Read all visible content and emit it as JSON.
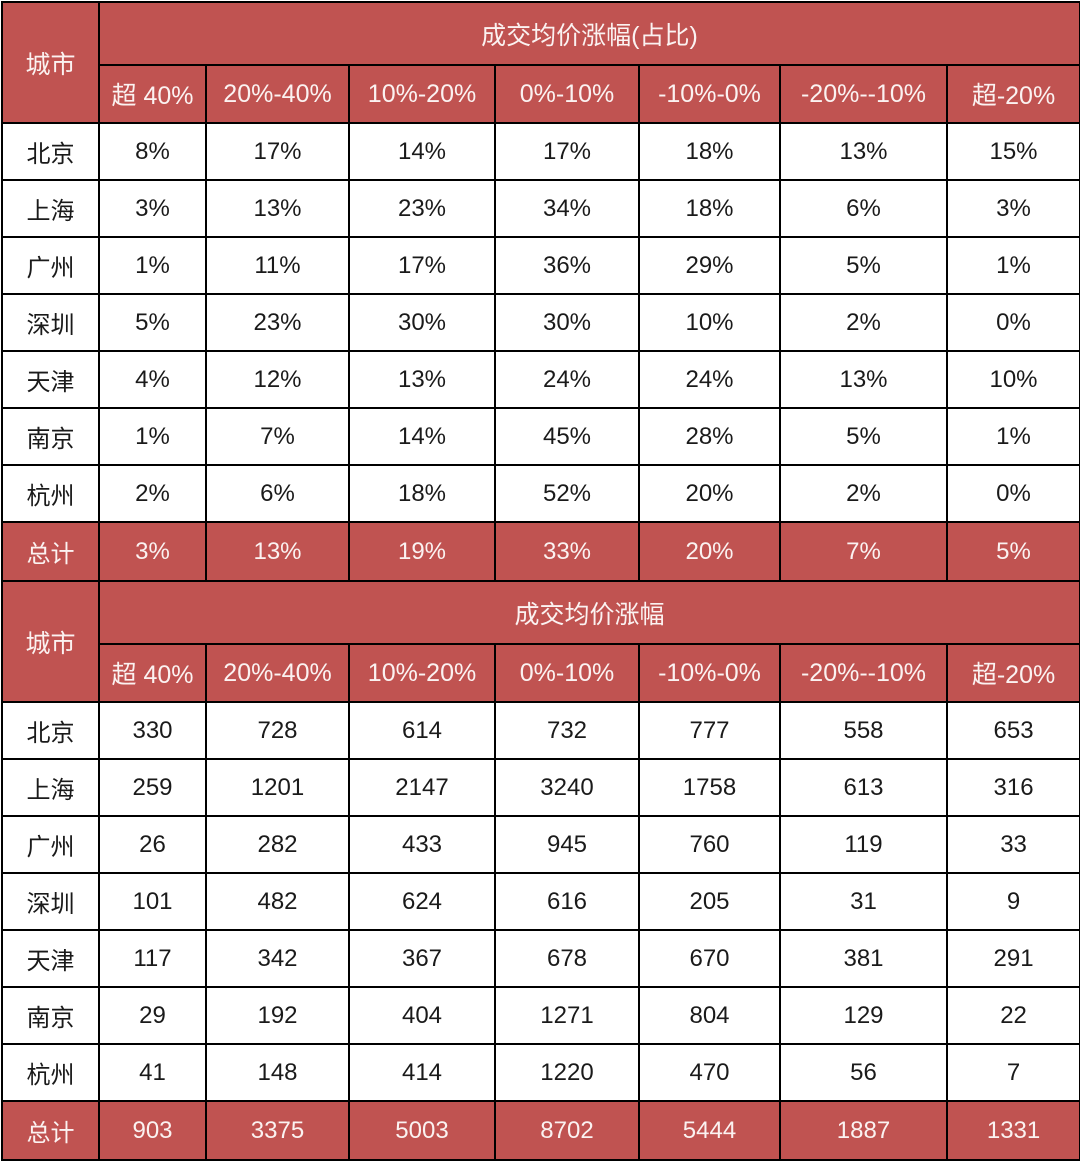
{
  "colors": {
    "accent_red": "#C05351",
    "header_text": "#FBF2F1",
    "body_text": "#1A1A1A",
    "border": "#000000",
    "row_bg": "#FFFFFF"
  },
  "chart_data": [
    {
      "type": "table",
      "title": "成交均价涨幅(占比)",
      "corner_label": "城市",
      "columns": [
        "超 40%",
        "20%-40%",
        "10%-20%",
        "0%-10%",
        "-10%-0%",
        "-20%--10%",
        "超-20%"
      ],
      "rows": [
        {
          "label": "北京",
          "values": [
            "8%",
            "17%",
            "14%",
            "17%",
            "18%",
            "13%",
            "15%"
          ]
        },
        {
          "label": "上海",
          "values": [
            "3%",
            "13%",
            "23%",
            "34%",
            "18%",
            "6%",
            "3%"
          ]
        },
        {
          "label": "广州",
          "values": [
            "1%",
            "11%",
            "17%",
            "36%",
            "29%",
            "5%",
            "1%"
          ]
        },
        {
          "label": "深圳",
          "values": [
            "5%",
            "23%",
            "30%",
            "30%",
            "10%",
            "2%",
            "0%"
          ]
        },
        {
          "label": "天津",
          "values": [
            "4%",
            "12%",
            "13%",
            "24%",
            "24%",
            "13%",
            "10%"
          ]
        },
        {
          "label": "南京",
          "values": [
            "1%",
            "7%",
            "14%",
            "45%",
            "28%",
            "5%",
            "1%"
          ]
        },
        {
          "label": "杭州",
          "values": [
            "2%",
            "6%",
            "18%",
            "52%",
            "20%",
            "2%",
            "0%"
          ]
        }
      ],
      "total": {
        "label": "总计",
        "values": [
          "3%",
          "13%",
          "19%",
          "33%",
          "20%",
          "7%",
          "5%"
        ]
      }
    },
    {
      "type": "table",
      "title": "成交均价涨幅",
      "corner_label": "城市",
      "columns": [
        "超 40%",
        "20%-40%",
        "10%-20%",
        "0%-10%",
        "-10%-0%",
        "-20%--10%",
        "超-20%"
      ],
      "rows": [
        {
          "label": "北京",
          "values": [
            "330",
            "728",
            "614",
            "732",
            "777",
            "558",
            "653"
          ]
        },
        {
          "label": "上海",
          "values": [
            "259",
            "1201",
            "2147",
            "3240",
            "1758",
            "613",
            "316"
          ]
        },
        {
          "label": "广州",
          "values": [
            "26",
            "282",
            "433",
            "945",
            "760",
            "119",
            "33"
          ]
        },
        {
          "label": "深圳",
          "values": [
            "101",
            "482",
            "624",
            "616",
            "205",
            "31",
            "9"
          ]
        },
        {
          "label": "天津",
          "values": [
            "117",
            "342",
            "367",
            "678",
            "670",
            "381",
            "291"
          ]
        },
        {
          "label": "南京",
          "values": [
            "29",
            "192",
            "404",
            "1271",
            "804",
            "129",
            "22"
          ]
        },
        {
          "label": "杭州",
          "values": [
            "41",
            "148",
            "414",
            "1220",
            "470",
            "56",
            "7"
          ]
        }
      ],
      "total": {
        "label": "总计",
        "values": [
          "903",
          "3375",
          "5003",
          "8702",
          "5444",
          "1887",
          "1331"
        ]
      }
    }
  ]
}
